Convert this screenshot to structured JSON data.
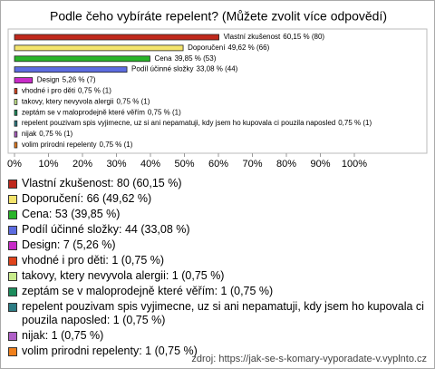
{
  "chart_data": {
    "type": "barh",
    "title": "Podle čeho vybíráte repelent? (Můžete zvolit více odpovědí)",
    "categories": [
      "Vlastní zkušenost",
      "Doporučení",
      "Cena",
      "Podíl účinné složky",
      "Design",
      "vhodné i pro děti",
      "takovy, ktery nevyvola alergii",
      "zeptám se v maloprodejně které věřím",
      "repelent pouzivam spis vyjimecne, uz si ani nepamatuji, kdy jsem ho kupovala ci pouzila naposled",
      "nijak",
      "volim prirodni repelenty"
    ],
    "values": [
      60.15,
      49.62,
      39.85,
      33.08,
      5.26,
      0.75,
      0.75,
      0.75,
      0.75,
      0.75,
      0.75
    ],
    "value_labels": [
      "60,15 % (80)",
      "49,62 % (66)",
      "39,85 % (53)",
      "33,08 % (44)",
      "5,26 % (7)",
      "0,75 % (1)",
      "0,75 % (1)",
      "0,75 % (1)",
      "0,75 % (1)",
      "0,75 % (1)",
      "0,75 % (1)"
    ],
    "colors": [
      "#c0281c",
      "#f4e46c",
      "#28b428",
      "#5c6ce0",
      "#c82cc8",
      "#e0441c",
      "#c8ec8c",
      "#1c8c5c",
      "#2c7c84",
      "#b060c8",
      "#f0801c"
    ],
    "legend_labels": [
      "Vlastní zkušenost: 80 (60,15 %)",
      "Doporučení: 66 (49,62 %)",
      "Cena: 53 (39,85 %)",
      "Podíl účinné složky: 44 (33,08 %)",
      "Design: 7 (5,26 %)",
      "vhodné i pro děti: 1 (0,75 %)",
      "takovy, ktery nevyvola alergii: 1 (0,75 %)",
      "zeptám se v maloprodejně které věřím: 1 (0,75 %)",
      "repelent pouzivam spis vyjimecne, uz si ani nepamatuji, kdy jsem ho kupovala ci pouzila naposled: 1 (0,75 %)",
      "nijak: 1 (0,75 %)",
      "volim prirodni repelenty: 1 (0,75 %)"
    ],
    "xlim": [
      0,
      100
    ],
    "xticks": [
      {
        "value": 0,
        "label": "0%"
      },
      {
        "value": 10,
        "label": "10%"
      },
      {
        "value": 20,
        "label": "20%"
      },
      {
        "value": 30,
        "label": "30%"
      },
      {
        "value": 40,
        "label": "40%"
      },
      {
        "value": 50,
        "label": "50%"
      },
      {
        "value": 60,
        "label": "60%"
      },
      {
        "value": 70,
        "label": "70%"
      },
      {
        "value": 80,
        "label": "80%"
      },
      {
        "value": 90,
        "label": "90%"
      },
      {
        "value": 100,
        "label": "100%"
      }
    ],
    "grid": false,
    "source": "zdroj: https://jak-se-s-komary-vyporadate-v.vyplnto.cz"
  }
}
